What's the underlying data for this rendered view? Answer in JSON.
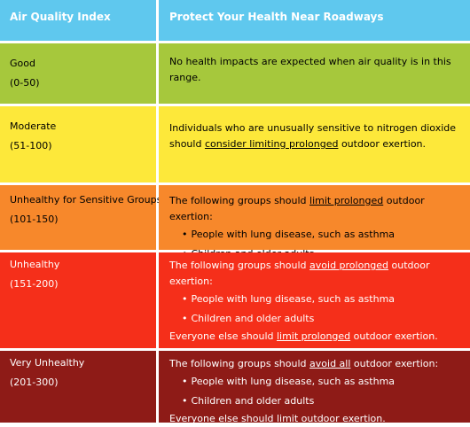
{
  "header": {
    "col1": "Air Quality Index",
    "col2": "Protect Your Health Near Roadways"
  },
  "colors": {
    "header": "#5fc8ee",
    "good": "#a6c83c",
    "moderate": "#fde83a",
    "sensitive": "#f7882b",
    "unhealthy": "#f52f1a",
    "very_unhealthy": "#8e1b17"
  },
  "rows": [
    {
      "category": "Good",
      "range": "(0-50)",
      "text": "No health impacts are expected when air quality is in this range."
    },
    {
      "category": "Moderate",
      "range": "(51-100)",
      "line1": "Individuals who are unusually sensitive to nitrogen dioxide",
      "line2_pre": "should ",
      "line2_u": "consider limiting prolonged",
      "line2_post": " outdoor exertion."
    },
    {
      "category": "Unhealthy for Sensitive Groups",
      "range": "(101-150)",
      "pre": "The following groups should ",
      "u": "limit prolonged",
      "post": " outdoor exertion:",
      "bullets": [
        "People with lung disease, such as asthma",
        "Children and older adults"
      ]
    },
    {
      "category": "Unhealthy",
      "range": "(151-200)",
      "pre": "The following groups should ",
      "u": "avoid prolonged",
      "post": " outdoor exertion:",
      "bullets": [
        "People with lung disease, such as asthma",
        "Children and older adults"
      ],
      "foot_pre": "Everyone else should ",
      "foot_u": "limit prolonged",
      "foot_post": " outdoor exertion."
    },
    {
      "category": "Very Unhealthy",
      "range": "(201-300)",
      "pre": "The following groups should ",
      "u": "avoid all",
      "post": " outdoor exertion:",
      "bullets": [
        "People with lung disease, such as asthma",
        "Children and older adults"
      ],
      "foot": "Everyone else should limit outdoor exertion."
    }
  ]
}
